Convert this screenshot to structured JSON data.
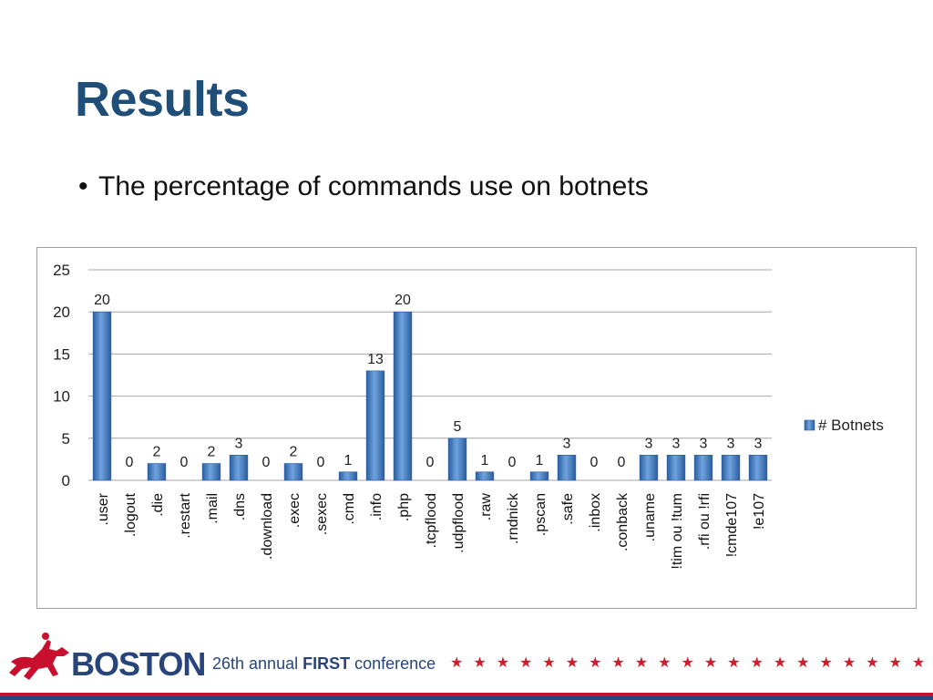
{
  "slide": {
    "title": "Results",
    "bullets": [
      "The percentage of commands use on botnets"
    ]
  },
  "chart_data": {
    "type": "bar",
    "categories": [
      ".user",
      ".logout",
      ".die",
      ".restart",
      ".mail",
      ".dns",
      ".download",
      ".exec",
      ".sexec",
      ".cmd",
      ".info",
      ".php",
      ".tcpflood",
      ".udpflood",
      ".raw",
      ".rndnick",
      ".pscan",
      ".safe",
      ".inbox",
      ".conback",
      ".uname",
      "!tim ou !tum",
      ".rfi ou !rfi",
      "!cmde107",
      "!e107"
    ],
    "series": [
      {
        "name": "# Botnets",
        "values": [
          20,
          0,
          2,
          0,
          2,
          3,
          0,
          2,
          0,
          1,
          13,
          20,
          0,
          5,
          1,
          0,
          1,
          3,
          0,
          0,
          3,
          3,
          3,
          3,
          3
        ]
      }
    ],
    "yticks": [
      0,
      5,
      10,
      15,
      20,
      25
    ],
    "ylim": [
      0,
      25
    ],
    "grid": true,
    "legend_position": "right",
    "colors": {
      "bar": "#3a78c3",
      "bar_dark": "#2a5d9f",
      "bar_light": "#6fa3e0",
      "grid": "#a6a6a6"
    }
  },
  "footer": {
    "brand": "BOSTON",
    "conference_prefix": "26th annual ",
    "conference_bold": "FIRST",
    "conference_suffix": " conference",
    "stars": "★★★★★★★★★★★★★★★★★★★★★"
  }
}
